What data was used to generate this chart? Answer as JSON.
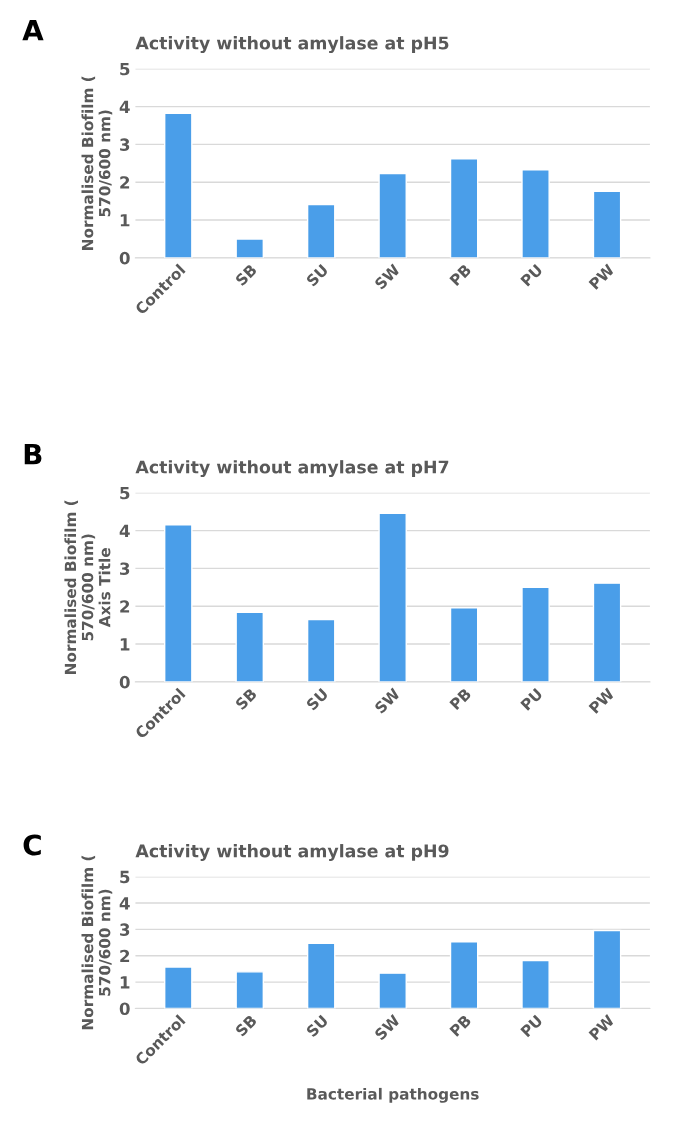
{
  "chart_data": [
    {
      "type": "bar",
      "title": "Activity without amylase at pH5",
      "ylabel": "Normalised Biofilm (\n570/600 nm)",
      "annotations": [
        "A"
      ],
      "categories": [
        "Control",
        "SB",
        "SU",
        "SW",
        "PB",
        "PU",
        "PW"
      ],
      "values": [
        3.82,
        0.5,
        1.41,
        2.23,
        2.62,
        2.33,
        1.76
      ],
      "color": "#4a9ee9",
      "ylim": [
        0,
        5
      ],
      "yticks": [
        0,
        1,
        2,
        3,
        4,
        5
      ],
      "grid": "y"
    },
    {
      "type": "bar",
      "title": "Activity without amylase at pH7",
      "ylabel": "Normalised Biofilm (\n570/600 nm)\nAxis Title",
      "annotations": [
        "B"
      ],
      "categories": [
        "Control",
        "SB",
        "SU",
        "SW",
        "PB",
        "PU",
        "PW"
      ],
      "values": [
        4.15,
        1.84,
        1.65,
        4.46,
        1.96,
        2.5,
        2.61
      ],
      "color": "#4a9ee9",
      "ylim": [
        0,
        5
      ],
      "yticks": [
        0,
        1,
        2,
        3,
        4,
        5
      ],
      "grid": "y"
    },
    {
      "type": "bar",
      "title": "Activity without amylase at pH9",
      "ylabel": "Normalised Biofilm (\n570/600 nm)",
      "xlabel": "Bacterial pathogens",
      "annotations": [
        "C"
      ],
      "categories": [
        "Control",
        "SB",
        "SU",
        "SW",
        "PB",
        "PU",
        "PW"
      ],
      "values": [
        1.57,
        1.39,
        2.47,
        1.34,
        2.53,
        1.82,
        2.96
      ],
      "color": "#4a9ee9",
      "ylim": [
        0,
        5
      ],
      "yticks": [
        0,
        1,
        2,
        3,
        4,
        5
      ],
      "grid": "y"
    }
  ]
}
